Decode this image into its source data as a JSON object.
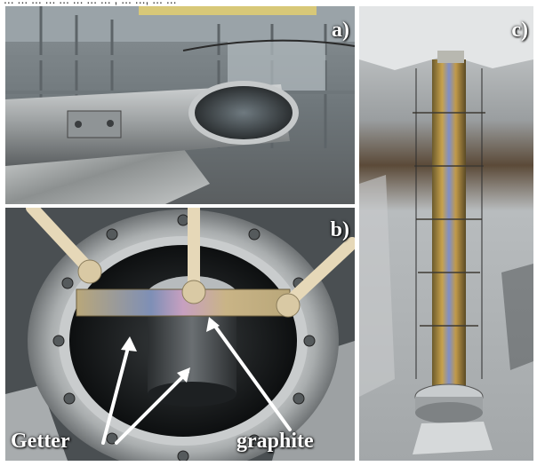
{
  "header": {
    "partial_text": "...  ...  ...     ...  ...  ...  ...  ... ,  ...  ...,  ...  ..."
  },
  "panels": {
    "a": {
      "label": "a)"
    },
    "b": {
      "label": "b)",
      "annotations": {
        "getter": "Getter",
        "graphite": "graphite"
      }
    },
    "c": {
      "label": "c)"
    }
  }
}
